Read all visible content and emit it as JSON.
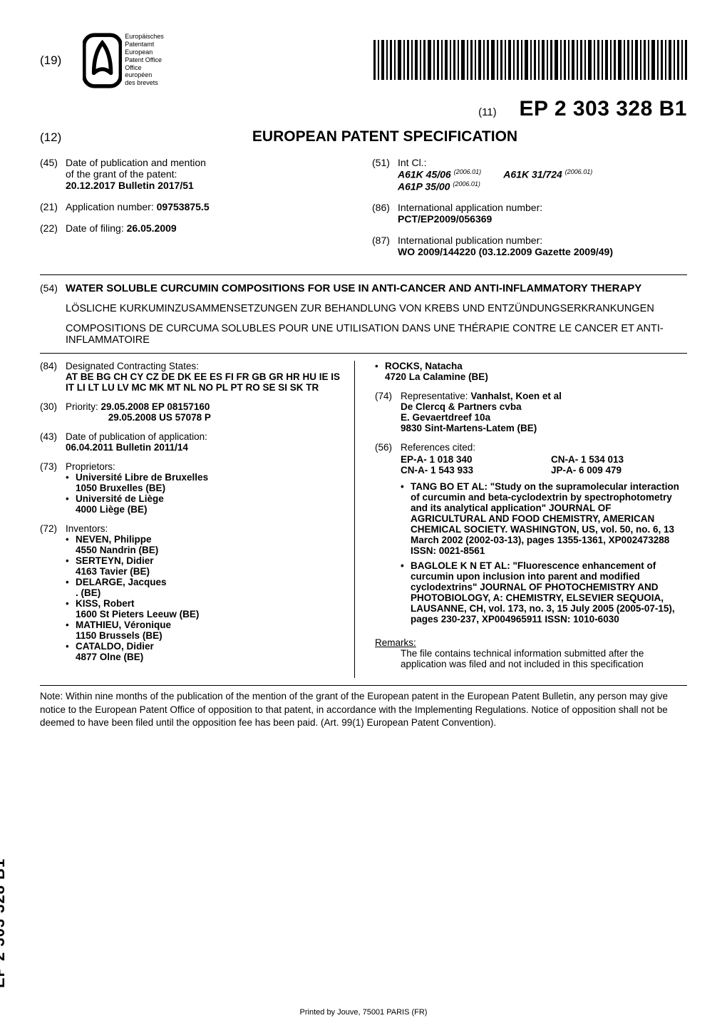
{
  "header": {
    "num19": "(19)",
    "office_lines": [
      "Europäisches",
      "Patentamt",
      "European",
      "Patent Office",
      "Office européen",
      "des brevets"
    ],
    "pub11_label": "(11)",
    "pub_number": "EP 2 303 328 B1",
    "num12": "(12)",
    "doc_type": "EUROPEAN PATENT SPECIFICATION"
  },
  "biblio": {
    "f45_label": "(45)",
    "f45_line1": "Date of publication and mention",
    "f45_line2": "of the grant of the patent:",
    "f45_bold": "20.12.2017  Bulletin 2017/51",
    "f21_label": "(21)",
    "f21_text": "Application number:",
    "f21_bold": "09753875.5",
    "f22_label": "(22)",
    "f22_text": "Date of filing:",
    "f22_bold": "26.05.2009",
    "f51_label": "(51)",
    "f51_text": "Int Cl.:",
    "ipc_1_code": "A61K 45/06",
    "ipc_1_ver": "(2006.01)",
    "ipc_2_code": "A61K 31/724",
    "ipc_2_ver": "(2006.01)",
    "ipc_3_code": "A61P 35/00",
    "ipc_3_ver": "(2006.01)",
    "f86_label": "(86)",
    "f86_line1": "International application number:",
    "f86_bold": "PCT/EP2009/056369",
    "f87_label": "(87)",
    "f87_line1": "International publication number:",
    "f87_bold": "WO 2009/144220 (03.12.2009 Gazette 2009/49)"
  },
  "title": {
    "f54_label": "(54)",
    "main": "WATER SOLUBLE CURCUMIN COMPOSITIONS FOR USE IN ANTI-CANCER AND ANTI-INFLAMMATORY THERAPY",
    "de": "LÖSLICHE KURKUMINZUSAMMENSETZUNGEN ZUR BEHANDLUNG VON KREBS UND ENTZÜNDUNGSERKRANKUNGEN",
    "fr": "COMPOSITIONS DE CURCUMA SOLUBLES POUR UNE UTILISATION DANS UNE THÉRAPIE CONTRE LE CANCER ET ANTI-INFLAMMATOIRE"
  },
  "left_col": {
    "f84_label": "(84)",
    "f84_text": "Designated Contracting States:",
    "f84_bold": "AT BE BG CH CY CZ DE DK EE ES FI FR GB GR HR HU IE IS IT LI LT LU LV MC MK MT NL NO PL PT RO SE SI SK TR",
    "f30_label": "(30)",
    "f30_text": "Priority:",
    "f30_bold_1": "29.05.2008  EP 08157160",
    "f30_bold_2": "29.05.2008  US 57078 P",
    "f43_label": "(43)",
    "f43_line1": "Date of publication of application:",
    "f43_bold": "06.04.2011  Bulletin 2011/14",
    "f73_label": "(73)",
    "f73_text": "Proprietors:",
    "f73_items": [
      {
        "name": "Université Libre de Bruxelles",
        "addr": "1050 Bruxelles (BE)"
      },
      {
        "name": "Université de Liège",
        "addr": "4000 Liège (BE)"
      }
    ],
    "f72_label": "(72)",
    "f72_text": "Inventors:",
    "f72_items": [
      {
        "name": "NEVEN, Philippe",
        "addr": "4550 Nandrin (BE)"
      },
      {
        "name": "SERTEYN, Didier",
        "addr": "4163 Tavier (BE)"
      },
      {
        "name": "DELARGE, Jacques",
        "addr": ". (BE)"
      },
      {
        "name": "KISS, Robert",
        "addr": "1600 St Pieters Leeuw (BE)"
      },
      {
        "name": "MATHIEU, Véronique",
        "addr": "1150 Brussels (BE)"
      },
      {
        "name": "CATALDO, Didier",
        "addr": "4877 Olne (BE)"
      }
    ]
  },
  "right_col": {
    "inventor_cont": {
      "name": "ROCKS, Natacha",
      "addr": "4720 La Calamine (BE)"
    },
    "f74_label": "(74)",
    "f74_text": "Representative:",
    "f74_bold_name": "Vanhalst, Koen et al",
    "f74_lines": [
      "De Clercq & Partners cvba",
      "E. Gevaertdreef 10a",
      "9830 Sint-Martens-Latem (BE)"
    ],
    "f56_label": "(56)",
    "f56_text": "References cited:",
    "f56_patents": [
      [
        "EP-A- 1 018 340",
        "CN-A- 1 534 013"
      ],
      [
        "CN-A- 1 543 933",
        "JP-A- 6 009 479"
      ]
    ],
    "f56_npl": [
      "TANG BO ET AL: \"Study on the supramolecular interaction of curcumin and beta-cyclodextrin by spectrophotometry and its analytical application\" JOURNAL OF AGRICULTURAL AND FOOD CHEMISTRY, AMERICAN CHEMICAL SOCIETY. WASHINGTON, US, vol. 50, no. 6, 13 March 2002 (2002-03-13), pages 1355-1361, XP002473288 ISSN: 0021-8561",
      "BAGLOLE K N ET AL: \"Fluorescence enhancement of curcumin upon inclusion into parent and modified cyclodextrins\" JOURNAL OF PHOTOCHEMISTRY AND PHOTOBIOLOGY, A: CHEMISTRY, ELSEVIER SEQUOIA, LAUSANNE, CH, vol. 173, no. 3, 15 July 2005 (2005-07-15), pages 230-237, XP004965911 ISSN: 1010-6030"
    ],
    "remarks_label": "Remarks:",
    "remarks_text": "The file contains technical information submitted after the application was filed and not included in this specification"
  },
  "note": "Note: Within nine months of the publication of the mention of the grant of the European patent in the European Patent Bulletin, any person may give notice to the European Patent Office of opposition to that patent, in accordance with the Implementing Regulations. Notice of opposition shall not be deemed to have been filed until the opposition fee has been paid. (Art. 99(1) European Patent Convention).",
  "spine": "EP 2 303 328 B1",
  "footer": "Printed by Jouve, 75001 PARIS (FR)"
}
